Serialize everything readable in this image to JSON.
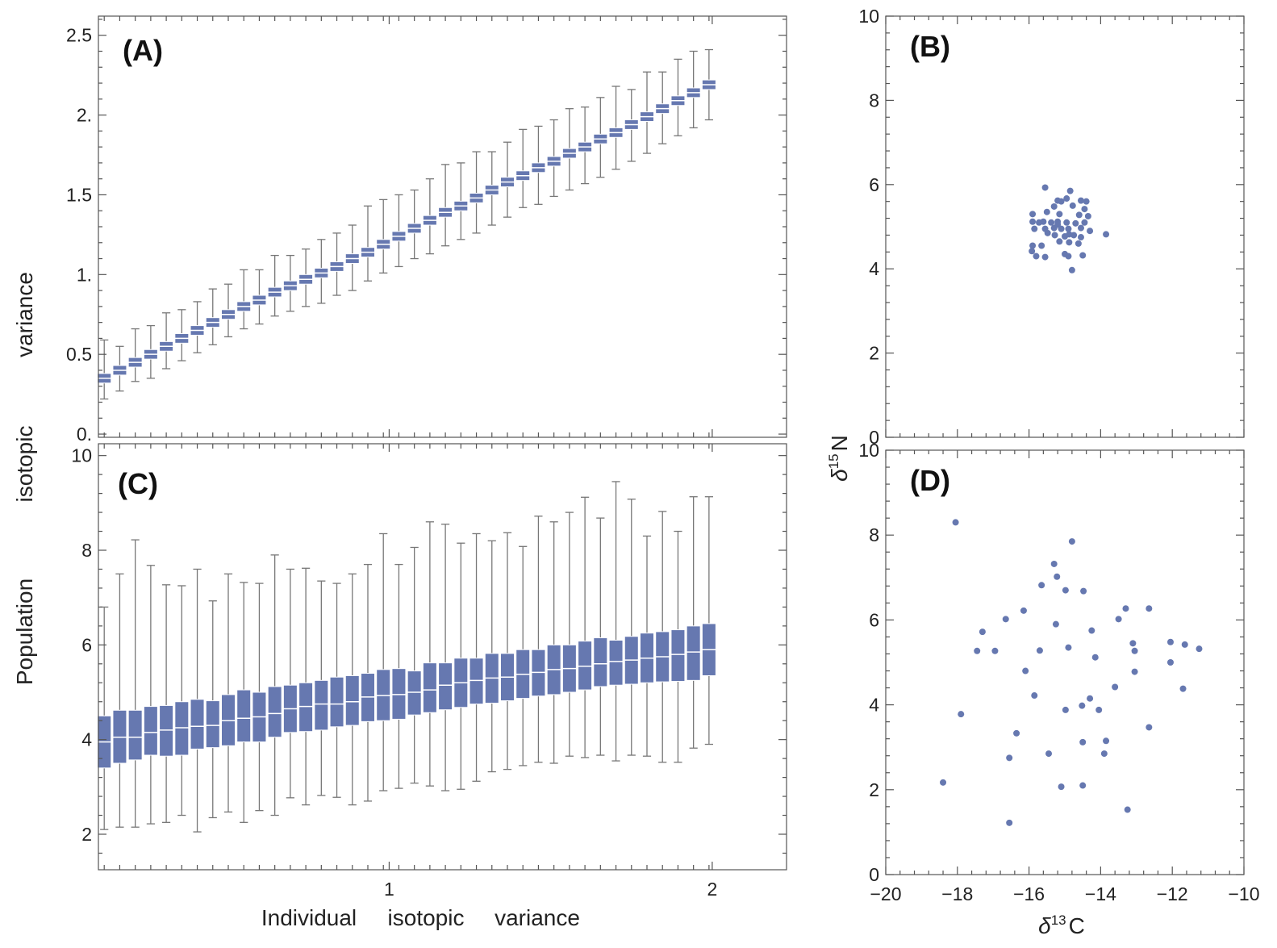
{
  "colors": {
    "marker": "#6678b0",
    "frame": "#555555"
  },
  "axis_labels": {
    "shared_y_words": [
      "Population",
      "isotopic",
      "variance"
    ],
    "shared_x_words": [
      "Individual",
      "isotopic",
      "variance"
    ],
    "right_y": {
      "symbol": "δ",
      "sup": "15",
      "base": "N"
    },
    "right_x": {
      "symbol": "δ",
      "sup": "13",
      "base": "C"
    }
  },
  "chart_data": [
    {
      "id": "A",
      "panel_label": "(A)",
      "type": "boxplot",
      "xlim": [
        0.1,
        2.23
      ],
      "ylim": [
        -0.02,
        2.62
      ],
      "yticks": [
        0,
        0.5,
        1,
        1.5,
        2,
        2.5
      ],
      "ytick_labels": [
        "0.",
        "0.5",
        "1.",
        "1.5",
        "2.",
        "2.5"
      ],
      "xticks": [
        1,
        2
      ],
      "xtick_labels": [
        "",
        ""
      ],
      "x": [
        0.118,
        0.166,
        0.214,
        0.262,
        0.31,
        0.358,
        0.406,
        0.454,
        0.502,
        0.55,
        0.598,
        0.646,
        0.694,
        0.742,
        0.79,
        0.838,
        0.886,
        0.934,
        0.982,
        1.03,
        1.078,
        1.126,
        1.174,
        1.222,
        1.27,
        1.318,
        1.366,
        1.414,
        1.462,
        1.51,
        1.558,
        1.606,
        1.654,
        1.702,
        1.75,
        1.798,
        1.846,
        1.894,
        1.942,
        1.99
      ],
      "whisker_low": [
        0.22,
        0.27,
        0.33,
        0.35,
        0.41,
        0.46,
        0.51,
        0.56,
        0.61,
        0.66,
        0.69,
        0.74,
        0.77,
        0.8,
        0.82,
        0.87,
        0.9,
        0.96,
        1.01,
        1.05,
        1.1,
        1.13,
        1.18,
        1.22,
        1.26,
        1.31,
        1.36,
        1.42,
        1.44,
        1.49,
        1.53,
        1.57,
        1.61,
        1.66,
        1.71,
        1.76,
        1.82,
        1.87,
        1.92,
        1.97
      ],
      "q1": [
        0.32,
        0.37,
        0.42,
        0.47,
        0.52,
        0.57,
        0.62,
        0.67,
        0.72,
        0.77,
        0.81,
        0.86,
        0.9,
        0.94,
        0.98,
        1.02,
        1.07,
        1.11,
        1.16,
        1.21,
        1.26,
        1.31,
        1.36,
        1.4,
        1.45,
        1.5,
        1.55,
        1.59,
        1.64,
        1.68,
        1.73,
        1.77,
        1.82,
        1.86,
        1.91,
        1.96,
        2.01,
        2.06,
        2.11,
        2.16
      ],
      "median": [
        0.35,
        0.4,
        0.45,
        0.5,
        0.55,
        0.6,
        0.65,
        0.7,
        0.75,
        0.8,
        0.84,
        0.89,
        0.93,
        0.97,
        1.01,
        1.05,
        1.1,
        1.14,
        1.19,
        1.24,
        1.29,
        1.34,
        1.39,
        1.43,
        1.48,
        1.53,
        1.58,
        1.62,
        1.67,
        1.71,
        1.76,
        1.8,
        1.85,
        1.89,
        1.94,
        1.99,
        2.04,
        2.09,
        2.14,
        2.19
      ],
      "q3": [
        0.38,
        0.43,
        0.48,
        0.53,
        0.58,
        0.63,
        0.68,
        0.73,
        0.78,
        0.83,
        0.87,
        0.92,
        0.96,
        1.0,
        1.04,
        1.08,
        1.13,
        1.17,
        1.22,
        1.27,
        1.32,
        1.37,
        1.42,
        1.46,
        1.51,
        1.56,
        1.61,
        1.65,
        1.7,
        1.74,
        1.79,
        1.83,
        1.88,
        1.92,
        1.97,
        2.02,
        2.07,
        2.12,
        2.17,
        2.22
      ],
      "whisker_high": [
        0.59,
        0.55,
        0.66,
        0.68,
        0.76,
        0.78,
        0.83,
        0.91,
        0.94,
        1.03,
        1.03,
        1.12,
        1.12,
        1.16,
        1.22,
        1.26,
        1.31,
        1.43,
        1.47,
        1.5,
        1.53,
        1.6,
        1.69,
        1.7,
        1.77,
        1.77,
        1.83,
        1.91,
        1.93,
        1.97,
        2.04,
        2.05,
        2.11,
        2.18,
        2.16,
        2.27,
        2.27,
        2.35,
        2.4,
        2.41
      ]
    },
    {
      "id": "C",
      "panel_label": "(C)",
      "type": "boxplot",
      "xlim": [
        0.1,
        2.23
      ],
      "ylim": [
        1.25,
        10.25
      ],
      "yticks": [
        2,
        4,
        6,
        8,
        10
      ],
      "ytick_labels": [
        "2",
        "4",
        "6",
        "8",
        "10"
      ],
      "xticks": [
        1,
        2
      ],
      "xtick_labels": [
        "1",
        "2"
      ],
      "x": [
        0.118,
        0.166,
        0.214,
        0.262,
        0.31,
        0.358,
        0.406,
        0.454,
        0.502,
        0.55,
        0.598,
        0.646,
        0.694,
        0.742,
        0.79,
        0.838,
        0.886,
        0.934,
        0.982,
        1.03,
        1.078,
        1.126,
        1.174,
        1.222,
        1.27,
        1.318,
        1.366,
        1.414,
        1.462,
        1.51,
        1.558,
        1.606,
        1.654,
        1.702,
        1.75,
        1.798,
        1.846,
        1.894,
        1.942,
        1.99
      ],
      "whisker_low": [
        2.1,
        2.15,
        2.15,
        2.22,
        2.25,
        2.4,
        2.05,
        2.35,
        2.47,
        2.25,
        2.5,
        2.4,
        2.77,
        2.62,
        2.82,
        2.78,
        2.62,
        2.7,
        2.92,
        2.97,
        3.08,
        3.02,
        2.92,
        2.95,
        3.12,
        3.32,
        3.37,
        3.45,
        3.52,
        3.5,
        3.65,
        3.62,
        3.67,
        3.55,
        3.67,
        3.65,
        3.52,
        3.52,
        3.82,
        3.9
      ],
      "q1": [
        3.4,
        3.5,
        3.57,
        3.67,
        3.65,
        3.67,
        3.8,
        3.83,
        3.87,
        3.95,
        3.95,
        4.05,
        4.15,
        4.17,
        4.2,
        4.27,
        4.3,
        4.38,
        4.4,
        4.43,
        4.52,
        4.57,
        4.63,
        4.68,
        4.75,
        4.77,
        4.82,
        4.87,
        4.92,
        4.95,
        5.0,
        5.05,
        5.12,
        5.15,
        5.17,
        5.2,
        5.22,
        5.23,
        5.25,
        5.35
      ],
      "median": [
        3.95,
        4.05,
        4.05,
        4.15,
        4.2,
        4.25,
        4.28,
        4.3,
        4.4,
        4.45,
        4.48,
        4.55,
        4.65,
        4.7,
        4.75,
        4.75,
        4.8,
        4.9,
        4.93,
        4.95,
        5.0,
        5.05,
        5.15,
        5.2,
        5.25,
        5.3,
        5.32,
        5.38,
        5.42,
        5.48,
        5.5,
        5.55,
        5.6,
        5.65,
        5.68,
        5.72,
        5.75,
        5.8,
        5.85,
        5.9
      ],
      "q3": [
        4.5,
        4.62,
        4.62,
        4.7,
        4.72,
        4.8,
        4.85,
        4.82,
        4.95,
        5.05,
        5.0,
        5.12,
        5.15,
        5.2,
        5.25,
        5.32,
        5.35,
        5.4,
        5.48,
        5.5,
        5.45,
        5.62,
        5.62,
        5.72,
        5.72,
        5.82,
        5.82,
        5.9,
        5.9,
        6.0,
        6.0,
        6.08,
        6.15,
        6.1,
        6.18,
        6.25,
        6.28,
        6.32,
        6.4,
        6.45
      ],
      "whisker_high": [
        6.8,
        7.5,
        8.22,
        7.68,
        7.27,
        7.25,
        7.6,
        6.93,
        7.5,
        7.32,
        7.3,
        7.9,
        7.6,
        7.62,
        7.35,
        7.3,
        7.5,
        7.7,
        8.35,
        7.7,
        8.06,
        8.6,
        8.55,
        8.15,
        8.35,
        8.2,
        8.37,
        8.08,
        8.72,
        8.6,
        8.8,
        9.12,
        8.68,
        9.45,
        9.08,
        8.3,
        8.82,
        8.4,
        9.13,
        9.13
      ]
    },
    {
      "id": "B",
      "panel_label": "(B)",
      "type": "scatter",
      "xlim": [
        -20,
        -10
      ],
      "ylim": [
        0,
        10
      ],
      "yticks": [
        0,
        2,
        4,
        6,
        8,
        10
      ],
      "ytick_labels": [
        "0",
        "2",
        "4",
        "6",
        "8",
        "10"
      ],
      "xticks": [
        -20,
        -18,
        -16,
        -14,
        -12,
        -10
      ],
      "xtick_labels": [
        "",
        "",
        "",
        "",
        "",
        ""
      ],
      "points": [
        [
          -15.55,
          5.93
        ],
        [
          -15.2,
          5.62
        ],
        [
          -15.1,
          5.6
        ],
        [
          -14.85,
          5.85
        ],
        [
          -14.95,
          5.67
        ],
        [
          -14.55,
          5.62
        ],
        [
          -14.4,
          5.6
        ],
        [
          -15.3,
          5.48
        ],
        [
          -14.78,
          5.5
        ],
        [
          -14.45,
          5.42
        ],
        [
          -15.9,
          5.3
        ],
        [
          -15.5,
          5.35
        ],
        [
          -15.15,
          5.3
        ],
        [
          -14.6,
          5.28
        ],
        [
          -14.35,
          5.25
        ],
        [
          -15.9,
          5.12
        ],
        [
          -15.72,
          5.1
        ],
        [
          -15.6,
          5.12
        ],
        [
          -15.38,
          5.1
        ],
        [
          -15.2,
          5.12
        ],
        [
          -14.95,
          5.1
        ],
        [
          -14.7,
          5.08
        ],
        [
          -14.45,
          5.1
        ],
        [
          -15.85,
          4.95
        ],
        [
          -15.55,
          4.95
        ],
        [
          -15.3,
          4.97
        ],
        [
          -15.1,
          4.95
        ],
        [
          -14.9,
          4.95
        ],
        [
          -14.55,
          4.97
        ],
        [
          -15.48,
          4.85
        ],
        [
          -15.28,
          4.8
        ],
        [
          -14.88,
          4.82
        ],
        [
          -14.75,
          4.8
        ],
        [
          -13.85,
          4.82
        ],
        [
          -15.0,
          4.77
        ],
        [
          -14.55,
          4.75
        ],
        [
          -15.15,
          4.65
        ],
        [
          -14.88,
          4.63
        ],
        [
          -14.62,
          4.6
        ],
        [
          -15.65,
          4.55
        ],
        [
          -15.9,
          4.55
        ],
        [
          -15.92,
          4.42
        ],
        [
          -15.8,
          4.3
        ],
        [
          -15.55,
          4.28
        ],
        [
          -15.0,
          4.35
        ],
        [
          -14.9,
          4.3
        ],
        [
          -14.5,
          4.32
        ],
        [
          -14.8,
          3.97
        ],
        [
          -15.2,
          5.05
        ],
        [
          -14.3,
          4.9
        ]
      ]
    },
    {
      "id": "D",
      "panel_label": "(D)",
      "type": "scatter",
      "xlim": [
        -20,
        -10
      ],
      "ylim": [
        0,
        10
      ],
      "yticks": [
        0,
        2,
        4,
        6,
        8,
        10
      ],
      "ytick_labels": [
        "0",
        "2",
        "4",
        "6",
        "8",
        "10"
      ],
      "xticks": [
        -20,
        -18,
        -16,
        -14,
        -12,
        -10
      ],
      "xtick_labels": [
        "−20",
        "−18",
        "−16",
        "−14",
        "−12",
        "−10"
      ],
      "points": [
        [
          -18.05,
          8.3
        ],
        [
          -14.8,
          7.85
        ],
        [
          -15.3,
          7.32
        ],
        [
          -15.22,
          7.02
        ],
        [
          -15.65,
          6.82
        ],
        [
          -14.98,
          6.7
        ],
        [
          -14.48,
          6.68
        ],
        [
          -13.3,
          6.27
        ],
        [
          -12.65,
          6.27
        ],
        [
          -16.15,
          6.22
        ],
        [
          -16.65,
          6.02
        ],
        [
          -13.5,
          6.02
        ],
        [
          -17.3,
          5.72
        ],
        [
          -15.25,
          5.9
        ],
        [
          -14.25,
          5.75
        ],
        [
          -17.45,
          5.27
        ],
        [
          -16.95,
          5.27
        ],
        [
          -15.7,
          5.28
        ],
        [
          -14.9,
          5.35
        ],
        [
          -13.1,
          5.45
        ],
        [
          -13.05,
          5.27
        ],
        [
          -12.05,
          5.48
        ],
        [
          -11.65,
          5.42
        ],
        [
          -11.25,
          5.32
        ],
        [
          -14.15,
          5.12
        ],
        [
          -16.1,
          4.8
        ],
        [
          -13.05,
          4.78
        ],
        [
          -12.05,
          5.0
        ],
        [
          -11.7,
          4.38
        ],
        [
          -15.85,
          4.22
        ],
        [
          -13.6,
          4.42
        ],
        [
          -14.3,
          4.15
        ],
        [
          -14.52,
          3.98
        ],
        [
          -14.98,
          3.88
        ],
        [
          -14.05,
          3.88
        ],
        [
          -17.9,
          3.78
        ],
        [
          -12.65,
          3.47
        ],
        [
          -16.35,
          3.33
        ],
        [
          -14.5,
          3.12
        ],
        [
          -13.85,
          3.15
        ],
        [
          -15.45,
          2.85
        ],
        [
          -13.9,
          2.85
        ],
        [
          -16.55,
          2.75
        ],
        [
          -18.4,
          2.17
        ],
        [
          -15.1,
          2.07
        ],
        [
          -14.5,
          2.1
        ],
        [
          -13.25,
          1.53
        ],
        [
          -16.55,
          1.22
        ]
      ]
    }
  ]
}
